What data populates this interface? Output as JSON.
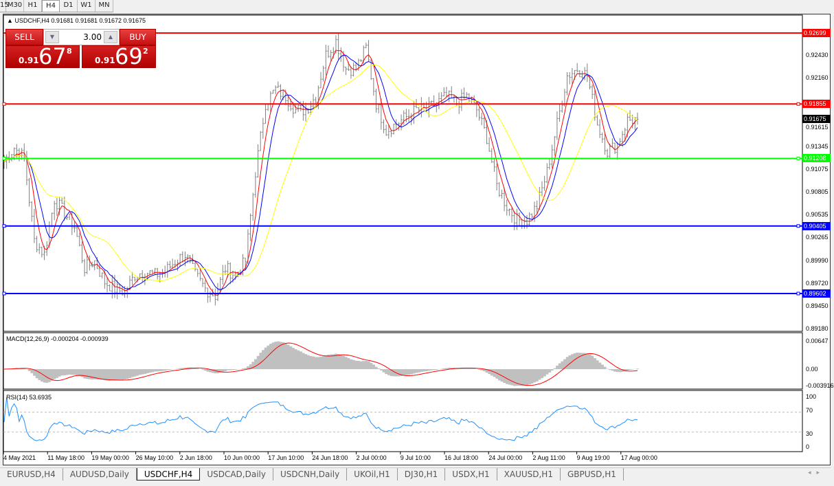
{
  "toolbar": {
    "timeframes": [
      "15",
      "M30",
      "H1",
      "H4",
      "D1",
      "W1",
      "MN"
    ],
    "active": "H4"
  },
  "header": {
    "symbol_line": "USDCHF,H4  0.91681 0.91681 0.91672 0.91675"
  },
  "trade_panel": {
    "sell_label": "SELL",
    "buy_label": "BUY",
    "lot": "3.00",
    "sell": {
      "small": "0.91",
      "big": "67",
      "exp": "8"
    },
    "buy": {
      "small": "0.91",
      "big": "69",
      "exp": "2"
    }
  },
  "price_axis": {
    "ticks": [
      "0.92430",
      "0.92160",
      "0.91615",
      "0.91345",
      "0.91075",
      "0.90805",
      "0.90535",
      "0.90265",
      "0.89990",
      "0.89720",
      "0.89450",
      "0.89180"
    ]
  },
  "hlines": [
    {
      "price": "0.92699",
      "color": "#ff0000"
    },
    {
      "price": "0.91855",
      "color": "#ff0000"
    },
    {
      "price": "0.91208",
      "color": "#00ff00"
    },
    {
      "price": "0.90405",
      "color": "#0000ff"
    },
    {
      "price": "0.89602",
      "color": "#0000ff"
    }
  ],
  "current_price": "0.91675",
  "macd": {
    "label": "MACD(12,26,9) -0.000204 -0.000939",
    "ticks": [
      "0.00647",
      "0.00",
      "-0.003916"
    ]
  },
  "rsi": {
    "label": "RSI(14) 53.6935",
    "ticks": [
      "100",
      "70",
      "30",
      "0"
    ]
  },
  "date_axis": [
    "4 May 2021",
    "11 May 18:00",
    "19 May 00:00",
    "26 May 10:00",
    "2 Jun 18:00",
    "10 Jun 00:00",
    "17 Jun 10:00",
    "24 Jun 18:00",
    "2 Jul 00:00",
    "9 Jul 10:00",
    "16 Jul 18:00",
    "24 Jul 00:00",
    "2 Aug 11:00",
    "9 Aug 19:00",
    "17 Aug 00:00"
  ],
  "tabs": [
    "EURUSD,H4",
    "AUDUSD,Daily",
    "USDCHF,H4",
    "USDCAD,Daily",
    "USDCNH,Daily",
    "UKOil,H1",
    "DJ30,H1",
    "USDX,H1",
    "XAUUSD,H1",
    "GBPUSD,H1"
  ],
  "active_tab": "USDCHF,H4",
  "chart_data": {
    "type": "ohlc-bar",
    "symbol": "USDCHF",
    "timeframe": "H4",
    "ylim": [
      0.8918,
      0.9285
    ],
    "x_ticks": [
      "4 May 2021",
      "11 May 18:00",
      "19 May 00:00",
      "26 May 10:00",
      "2 Jun 18:00",
      "10 Jun 00:00",
      "17 Jun 10:00",
      "24 Jun 18:00",
      "2 Jul 00:00",
      "9 Jul 10:00",
      "16 Jul 18:00",
      "24 Jul 00:00",
      "2 Aug 11:00",
      "9 Aug 19:00",
      "17 Aug 00:00"
    ],
    "close_path": [
      0.91171,
      0.91335,
      0.91212,
      0.90231,
      0.90068,
      0.90722,
      0.90558,
      0.90395,
      0.89904,
      0.89986,
      0.89741,
      0.89659,
      0.89618,
      0.89823,
      0.89864,
      0.89823,
      0.89864,
      0.89986,
      0.90068,
      0.89823,
      0.89659,
      0.89578,
      0.89904,
      0.89823,
      0.89986,
      0.91048,
      0.91866,
      0.92029,
      0.91947,
      0.91784,
      0.91784,
      0.91947,
      0.92438,
      0.92601,
      0.92274,
      0.92274,
      0.92519,
      0.91866,
      0.91539,
      0.9162,
      0.91702,
      0.91784,
      0.91784,
      0.91866,
      0.91947,
      0.91866,
      0.91947,
      0.91784,
      0.91457,
      0.90885,
      0.9064,
      0.90476,
      0.90476,
      0.9064,
      0.91048,
      0.9162,
      0.92192,
      0.92274,
      0.92192,
      0.9162,
      0.91294,
      0.91375,
      0.91661,
      0.91675
    ],
    "indicators": [
      "MA fast (red)",
      "MA medium (blue)",
      "MA slow (yellow)",
      "MACD(12,26,9)",
      "RSI(14)"
    ],
    "colors": {
      "bars": "#808080",
      "ma_fast": "#ff0000",
      "ma_mid": "#0000ff",
      "ma_slow": "#ffff00",
      "macd_hist": "#c0c0c0",
      "macd_signal": "#ff0000",
      "rsi": "#1e90ff"
    }
  }
}
